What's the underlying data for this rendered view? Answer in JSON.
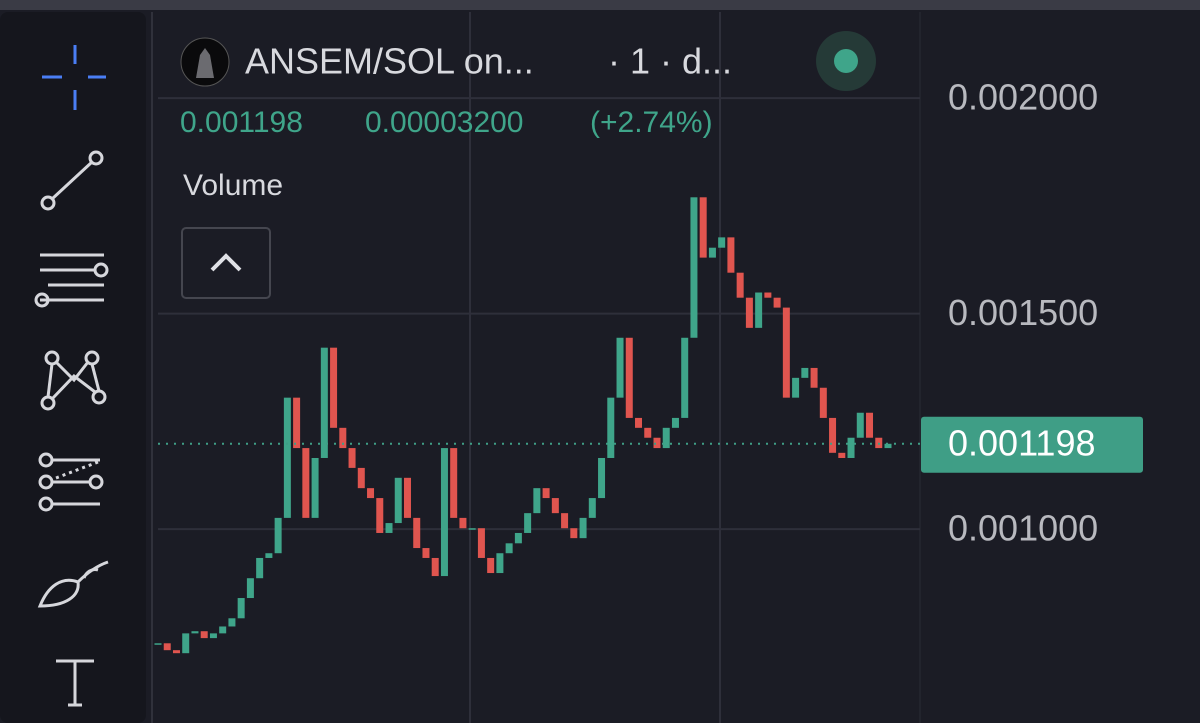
{
  "header": {
    "symbol": "ANSEM/SOL on...",
    "interval": "· 1 · d...",
    "last": "0.001198",
    "change": "0.00003200",
    "change_pct": "(+2.74%)",
    "indicator": "Volume"
  },
  "chart_data": {
    "type": "candlestick",
    "values": [
      0.000735,
      0.000719,
      0.000712,
      0.000758,
      0.000763,
      0.000747,
      0.000758,
      0.000774,
      0.000793,
      0.00084,
      0.000886,
      0.000933,
      0.000944,
      0.001026,
      0.001305,
      0.001188,
      0.001026,
      0.001165,
      0.001421,
      0.001235,
      0.001188,
      0.001142,
      0.001095,
      0.001072,
      0.000991,
      0.001014,
      0.001119,
      0.001026,
      0.000956,
      0.000933,
      0.000891,
      0.001188,
      0.001026,
      0.001002,
      0.001002,
      0.000933,
      0.000898,
      0.000944,
      0.000967,
      0.000991,
      0.001037,
      0.001095,
      0.001072,
      0.001037,
      0.001002,
      0.000979,
      0.001026,
      0.001072,
      0.001165,
      0.001305,
      0.001444,
      0.001258,
      0.001235,
      0.001212,
      0.001188,
      0.001235,
      0.001258,
      0.001444,
      0.00177,
      0.00163,
      0.001653,
      0.001677,
      0.001595,
      0.001537,
      0.001467,
      0.001549,
      0.001537,
      0.001514,
      0.001305,
      0.001351,
      0.001374,
      0.001328,
      0.001258,
      0.001177,
      0.001165,
      0.001212,
      0.00127,
      0.001212,
      0.001188,
      0.001198
    ],
    "up_color": "#3fa58a",
    "down_color": "#e0554f",
    "ylim": [
      0.00055,
      0.0022
    ],
    "yticks": [
      {
        "value": 0.001,
        "label": "0.001000"
      },
      {
        "value": 0.0015,
        "label": "0.001500"
      },
      {
        "value": 0.002,
        "label": "0.002000"
      }
    ],
    "grid": true,
    "price_line": {
      "value": 0.001198,
      "label": "0.001198",
      "color": "#3f9e86"
    }
  }
}
